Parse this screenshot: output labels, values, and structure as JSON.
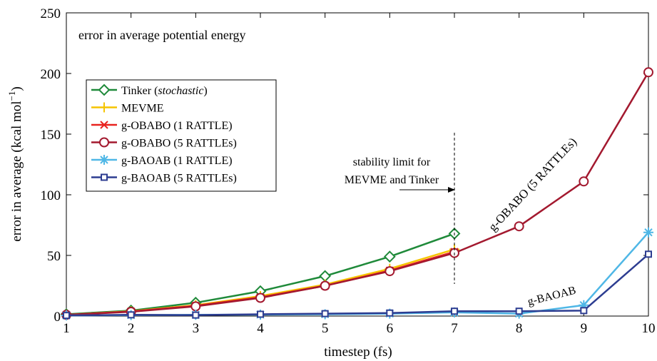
{
  "chart_data": {
    "type": "line",
    "title": "error in average potential energy",
    "xlabel": "timestep (fs)",
    "ylabel_main": "error in average (kcal mol",
    "ylabel_sup": "−1",
    "ylabel_tail": ")",
    "xlim": [
      1,
      10
    ],
    "ylim": [
      0,
      250
    ],
    "xticks": [
      1,
      2,
      3,
      4,
      5,
      6,
      7,
      8,
      9,
      10
    ],
    "yticks": [
      0,
      50,
      100,
      150,
      200,
      250
    ],
    "grid": false,
    "legend_position": "middle-left",
    "series": [
      {
        "name": "Tinker",
        "name_italic": "stochastic",
        "legend_prefix": "Tinker (",
        "legend_suffix": ")",
        "color": "#1f8a3a",
        "marker": "diamond",
        "x": [
          1,
          2,
          3,
          4,
          5,
          6,
          7
        ],
        "y": [
          1.5,
          4.5,
          11,
          20.5,
          33,
          49,
          68
        ]
      },
      {
        "name": "MEVME",
        "color": "#f5c400",
        "marker": "plus",
        "x": [
          1,
          2,
          3,
          4,
          5,
          6,
          7
        ],
        "y": [
          1,
          4,
          9,
          16.5,
          26,
          39,
          55
        ]
      },
      {
        "name": "g-OBABO (1 RATTLE)",
        "color": "#e8231f",
        "marker": "x",
        "x": [
          1,
          2,
          3,
          4,
          5,
          6,
          7
        ],
        "y": [
          1,
          3.8,
          8.5,
          15.5,
          25,
          37.5,
          53
        ]
      },
      {
        "name": "g-OBABO (5 RATTLEs)",
        "color": "#a3192f",
        "marker": "circle",
        "x": [
          1,
          2,
          3,
          4,
          5,
          6,
          7,
          8,
          9,
          10
        ],
        "y": [
          1,
          3.5,
          8,
          15,
          25,
          37,
          52,
          74,
          111,
          201
        ]
      },
      {
        "name": "g-BAOAB (1 RATTLE)",
        "color": "#4fb7e6",
        "marker": "asterisk",
        "x": [
          1,
          2,
          3,
          4,
          5,
          6,
          7,
          8,
          9,
          10
        ],
        "y": [
          0.5,
          0.8,
          1,
          1.2,
          1.5,
          2,
          3,
          2,
          9,
          69
        ]
      },
      {
        "name": "g-BAOAB (5 RATTLEs)",
        "color": "#2d3d91",
        "marker": "square",
        "x": [
          1,
          2,
          3,
          4,
          5,
          6,
          7,
          8,
          9,
          10
        ],
        "y": [
          0.5,
          1,
          0.8,
          1.5,
          2,
          2.5,
          4,
          4,
          4.5,
          51
        ]
      }
    ],
    "annotations": {
      "stability_line1": "stability limit for",
      "stability_line2": "MEVME and Tinker",
      "stability_x": 7,
      "obabo_label": "g-OBABO (5 RATTLEs)",
      "baoab_label": "g-BAOAB"
    }
  }
}
